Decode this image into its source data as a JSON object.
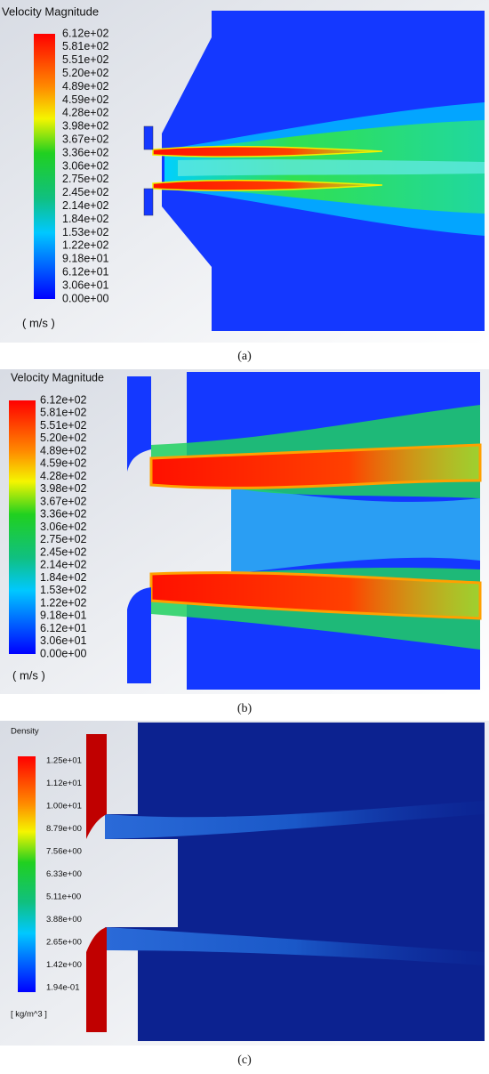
{
  "panels": [
    {
      "title": "Velocity Magnitude",
      "unit": "( m/s )",
      "caption": "(a)",
      "levels": [
        "6.12e+02",
        "5.81e+02",
        "5.51e+02",
        "5.20e+02",
        "4.89e+02",
        "4.59e+02",
        "4.28e+02",
        "3.98e+02",
        "3.67e+02",
        "3.36e+02",
        "3.06e+02",
        "2.75e+02",
        "2.45e+02",
        "2.14e+02",
        "1.84e+02",
        "1.53e+02",
        "1.22e+02",
        "9.18e+01",
        "6.12e+01",
        "3.06e+01",
        "0.00e+00"
      ]
    },
    {
      "title": "Velocity Magnitude",
      "unit": "( m/s )",
      "caption": "(b)",
      "levels": [
        "6.12e+02",
        "5.81e+02",
        "5.51e+02",
        "5.20e+02",
        "4.89e+02",
        "4.59e+02",
        "4.28e+02",
        "3.98e+02",
        "3.67e+02",
        "3.36e+02",
        "3.06e+02",
        "2.75e+02",
        "2.45e+02",
        "2.14e+02",
        "1.84e+02",
        "1.53e+02",
        "1.22e+02",
        "9.18e+01",
        "6.12e+01",
        "3.06e+01",
        "0.00e+00"
      ]
    },
    {
      "title": "Density",
      "unit": "[ kg/m^3 ]",
      "caption": "(c)",
      "levels": [
        "1.25e+01",
        "1.12e+01",
        "1.00e+01",
        "8.79e+00",
        "7.56e+00",
        "6.33e+00",
        "5.11e+00",
        "3.88e+00",
        "2.65e+00",
        "1.42e+00",
        "1.94e-01"
      ]
    }
  ]
}
